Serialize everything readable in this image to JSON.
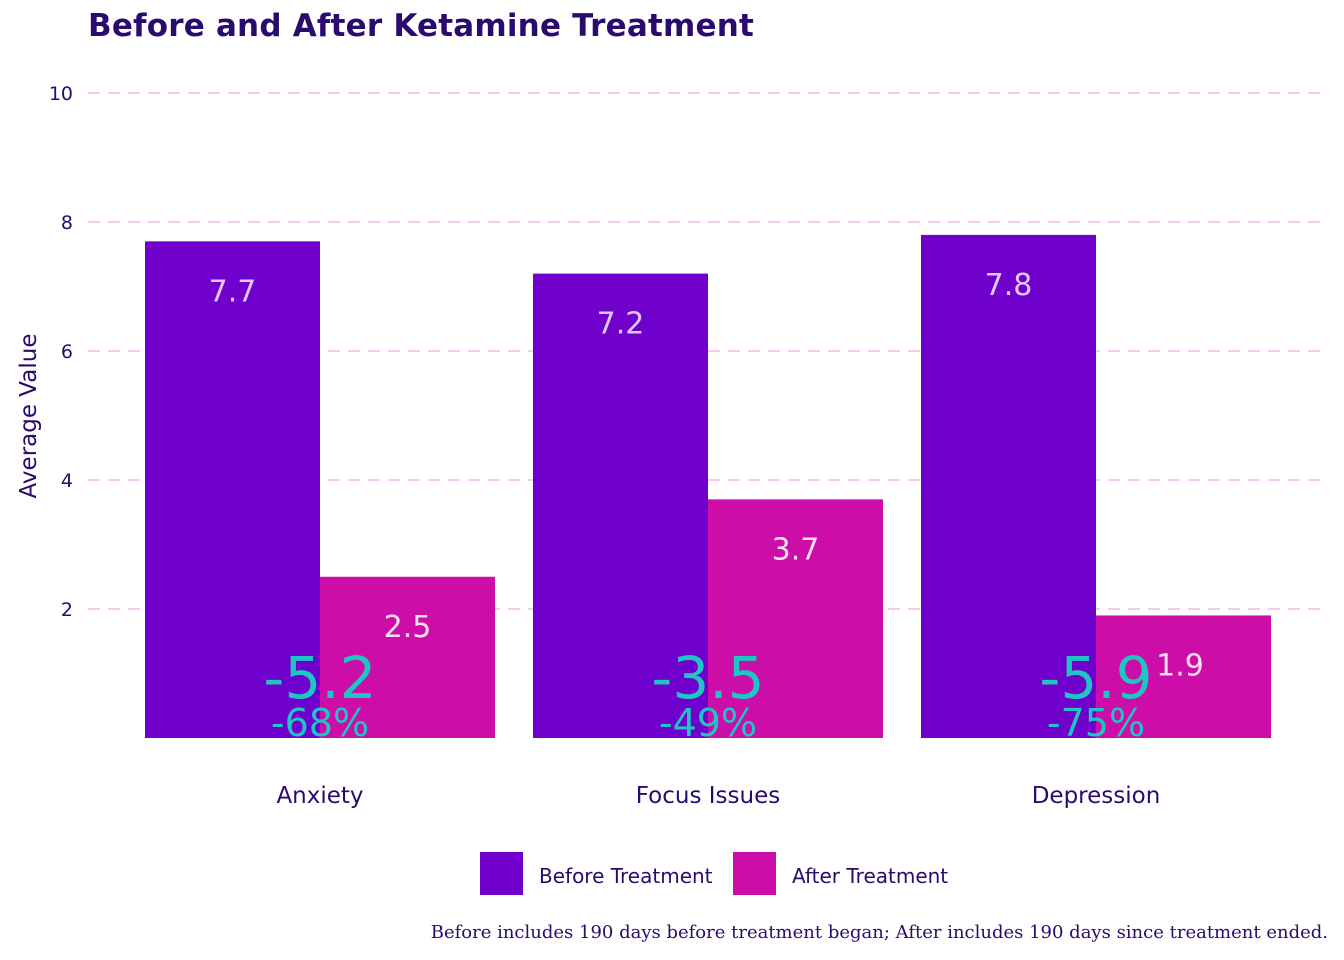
{
  "chart_data": {
    "type": "bar",
    "title": "Before and After Ketamine Treatment",
    "ylabel": "Average Value",
    "xlabel": "",
    "ylim": [
      0,
      10
    ],
    "yticks": [
      2,
      4,
      6,
      8,
      10
    ],
    "grid": true,
    "legend_position": "bottom",
    "categories": [
      "Anxiety",
      "Focus Issues",
      "Depression"
    ],
    "series": [
      {
        "name": "Before Treatment",
        "color": "#7000cc",
        "values": [
          7.7,
          7.2,
          7.8
        ],
        "labels": [
          "7.7",
          "7.2",
          "7.8"
        ]
      },
      {
        "name": "After Treatment",
        "color": "#cc0da7",
        "values": [
          2.5,
          3.7,
          1.9
        ],
        "labels": [
          "2.5",
          "3.7",
          "1.9"
        ]
      }
    ],
    "annotations": [
      {
        "change": "-5.2",
        "percent": "-68%"
      },
      {
        "change": "-3.5",
        "percent": "-49%"
      },
      {
        "change": "-5.9",
        "percent": "-75%"
      }
    ],
    "annotation_color": "#1fc4c4",
    "grid_color": "#f7c9ee",
    "text_color": "#2a0a6e",
    "caption": "Before includes 190 days before treatment began; After includes 190 days since treatment ended."
  }
}
